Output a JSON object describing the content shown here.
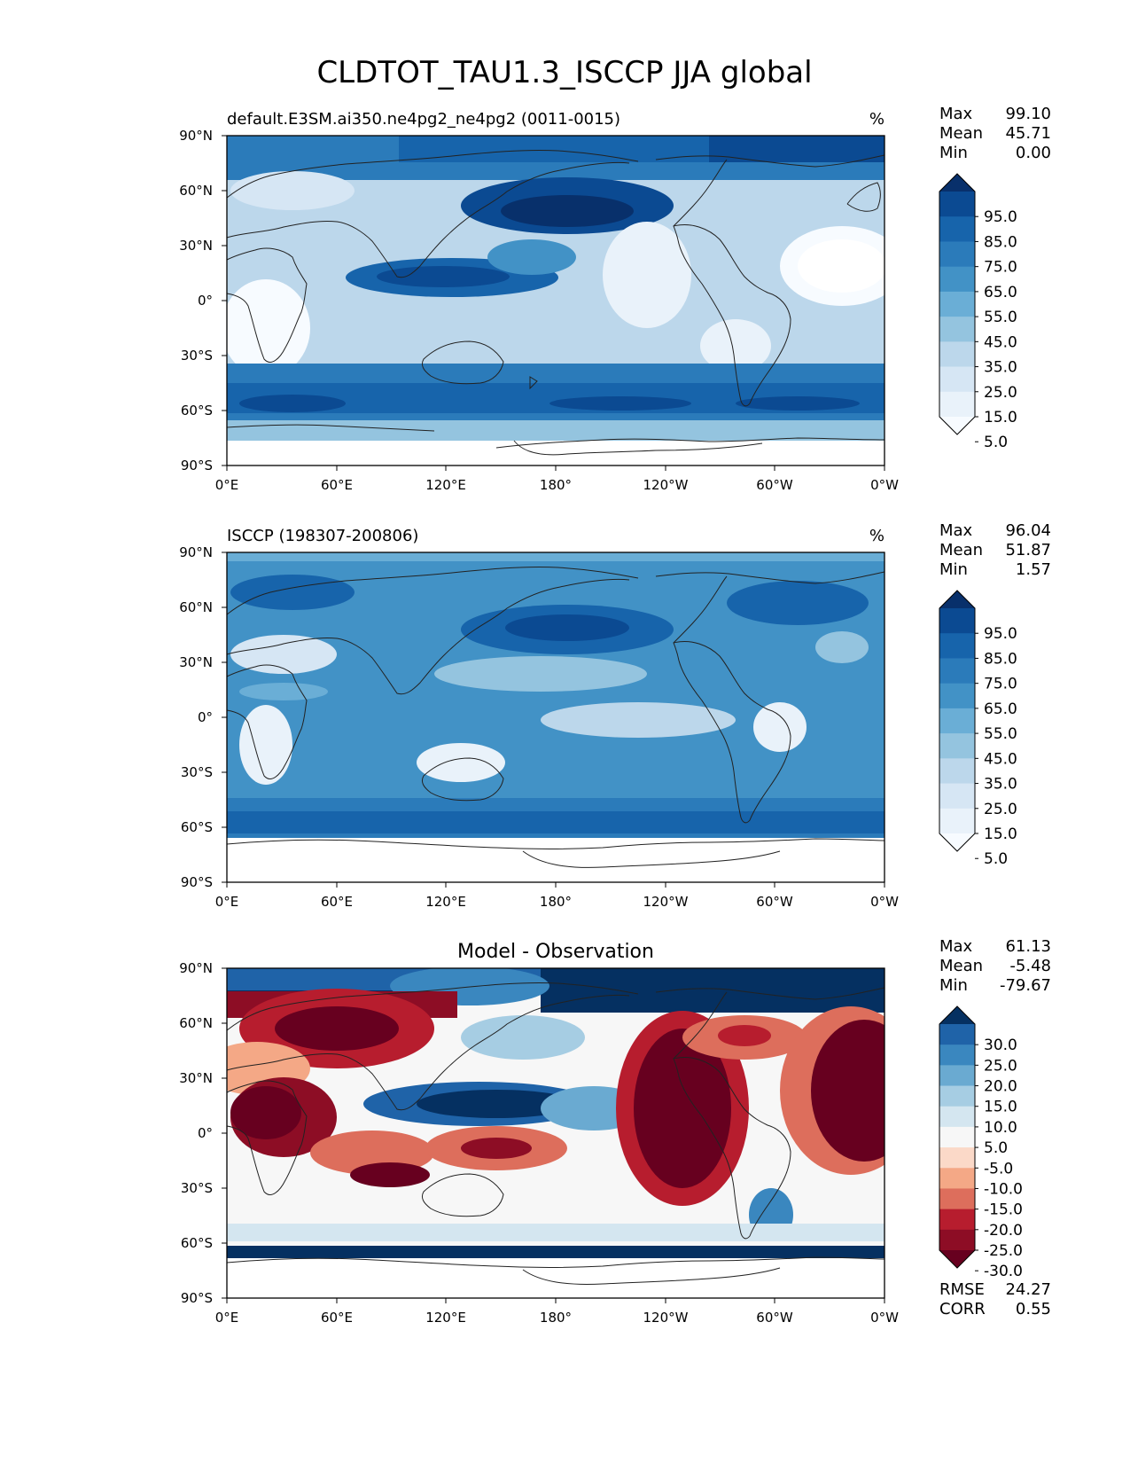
{
  "title": "CLDTOT_TAU1.3_ISCCP JJA global",
  "axes": {
    "lat_ticks": [
      "90°N",
      "60°N",
      "30°N",
      "0°",
      "30°S",
      "60°S",
      "90°S"
    ],
    "lon_ticks": [
      "0°E",
      "60°E",
      "120°E",
      "180°",
      "120°W",
      "60°W",
      "0°W"
    ]
  },
  "panels": [
    {
      "id": "model",
      "left_title": "default.E3SM.ai350.ne4pg2_ne4pg2 (0011-0015)",
      "center_title": "",
      "units": "%",
      "stats": [
        {
          "label": "Max",
          "value": "99.10"
        },
        {
          "label": "Mean",
          "value": "45.71"
        },
        {
          "label": "Min",
          "value": "0.00"
        }
      ],
      "colorbar": {
        "labels": [
          "95.0",
          "85.0",
          "75.0",
          "65.0",
          "55.0",
          "45.0",
          "35.0",
          "25.0",
          "15.0",
          "5.0"
        ],
        "colors": [
          "#08306b",
          "#0b4a92",
          "#1764ab",
          "#2b7bba",
          "#4292c6",
          "#6aaed6",
          "#94c4df",
          "#bcd7eb",
          "#d6e6f4",
          "#e9f2fa",
          "#f7fbff"
        ]
      },
      "footer_stats": []
    },
    {
      "id": "observation",
      "left_title": "ISCCP (198307-200806)",
      "center_title": "",
      "units": "%",
      "stats": [
        {
          "label": "Max",
          "value": "96.04"
        },
        {
          "label": "Mean",
          "value": "51.87"
        },
        {
          "label": "Min",
          "value": "1.57"
        }
      ],
      "colorbar": {
        "labels": [
          "95.0",
          "85.0",
          "75.0",
          "65.0",
          "55.0",
          "45.0",
          "35.0",
          "25.0",
          "15.0",
          "5.0"
        ],
        "colors": [
          "#08306b",
          "#0b4a92",
          "#1764ab",
          "#2b7bba",
          "#4292c6",
          "#6aaed6",
          "#94c4df",
          "#bcd7eb",
          "#d6e6f4",
          "#e9f2fa",
          "#f7fbff"
        ]
      },
      "footer_stats": []
    },
    {
      "id": "difference",
      "left_title": "",
      "center_title": "Model - Observation",
      "units": "",
      "stats": [
        {
          "label": "Max",
          "value": "61.13"
        },
        {
          "label": "Mean",
          "value": "-5.48"
        },
        {
          "label": "Min",
          "value": "-79.67"
        }
      ],
      "colorbar": {
        "labels": [
          "30.0",
          "25.0",
          "20.0",
          "15.0",
          "10.0",
          "5.0",
          "-5.0",
          "-10.0",
          "-15.0",
          "-20.0",
          "-25.0",
          "-30.0"
        ],
        "colors": [
          "#053061",
          "#1f63a8",
          "#3a87bf",
          "#6aaad1",
          "#a6cde3",
          "#d4e6f0",
          "#f7f7f7",
          "#fbd9c8",
          "#f4a886",
          "#dd6e5c",
          "#b71d2e",
          "#8d0d25",
          "#67001f"
        ]
      },
      "footer_stats": [
        {
          "label": "RMSE",
          "value": "24.27"
        },
        {
          "label": "CORR",
          "value": "0.55"
        }
      ]
    }
  ]
}
